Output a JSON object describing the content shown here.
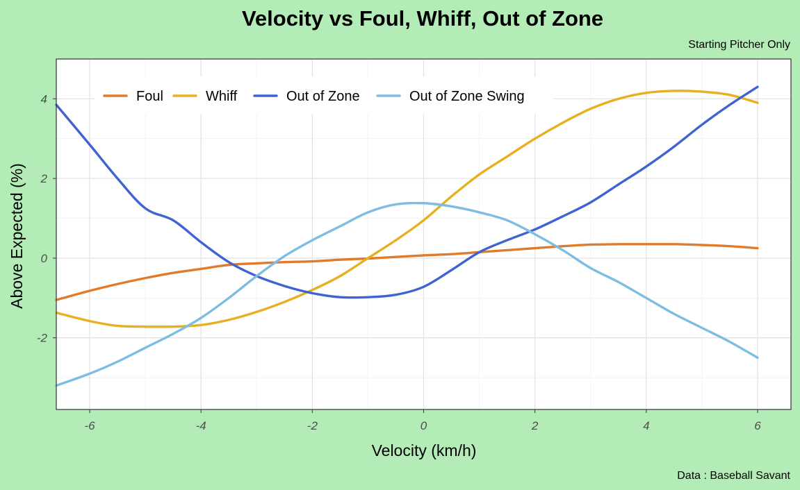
{
  "chart_data": {
    "type": "line",
    "title": "Velocity vs Foul, Whiff, Out of Zone",
    "subtitle": "Starting Pitcher Only",
    "caption": "Data : Baseball Savant",
    "xlabel": "Velocity (km/h)",
    "ylabel": "Above Expected (%)",
    "xlim": [
      -6.6,
      6.6
    ],
    "ylim": [
      -3.8,
      5.0
    ],
    "xticks": [
      -6,
      -4,
      -2,
      0,
      2,
      4,
      6
    ],
    "xtick_labels": [
      "-6",
      "-4",
      "-2",
      "0",
      "2",
      "4",
      "6"
    ],
    "yticks": [
      -2,
      0,
      2,
      4
    ],
    "ytick_labels": [
      "-2",
      "0",
      "2",
      "4"
    ],
    "grid": true,
    "legend_position": "top-left",
    "series": [
      {
        "name": "Foul",
        "color": "#e07b2c",
        "x": [
          -6.6,
          -6.0,
          -5.5,
          -5.0,
          -4.5,
          -4.0,
          -3.5,
          -3.0,
          -2.5,
          -2.0,
          -1.5,
          -1.0,
          -0.5,
          0.0,
          0.5,
          1.0,
          1.5,
          2.0,
          2.5,
          3.0,
          3.5,
          4.0,
          4.5,
          5.0,
          5.5,
          6.0
        ],
        "y": [
          -1.05,
          -0.82,
          -0.65,
          -0.5,
          -0.37,
          -0.27,
          -0.17,
          -0.13,
          -0.1,
          -0.08,
          -0.04,
          -0.01,
          0.03,
          0.07,
          0.1,
          0.15,
          0.2,
          0.25,
          0.3,
          0.34,
          0.35,
          0.35,
          0.35,
          0.33,
          0.3,
          0.25
        ]
      },
      {
        "name": "Whiff",
        "color": "#e8b020",
        "x": [
          -6.6,
          -6.0,
          -5.5,
          -5.0,
          -4.5,
          -4.0,
          -3.5,
          -3.0,
          -2.5,
          -2.0,
          -1.5,
          -1.0,
          -0.5,
          0.0,
          0.5,
          1.0,
          1.5,
          2.0,
          2.5,
          3.0,
          3.5,
          4.0,
          4.5,
          5.0,
          5.5,
          6.0
        ],
        "y": [
          -1.37,
          -1.58,
          -1.7,
          -1.72,
          -1.72,
          -1.68,
          -1.55,
          -1.35,
          -1.1,
          -0.8,
          -0.45,
          0.0,
          0.45,
          0.95,
          1.55,
          2.1,
          2.55,
          3.0,
          3.4,
          3.75,
          4.0,
          4.15,
          4.2,
          4.18,
          4.1,
          3.9
        ]
      },
      {
        "name": "Out of Zone",
        "color": "#3f63d3",
        "x": [
          -6.6,
          -6.0,
          -5.5,
          -5.0,
          -4.5,
          -4.0,
          -3.5,
          -3.0,
          -2.5,
          -2.0,
          -1.5,
          -1.0,
          -0.5,
          0.0,
          0.5,
          1.0,
          1.5,
          2.0,
          2.5,
          3.0,
          3.5,
          4.0,
          4.5,
          5.0,
          5.5,
          6.0
        ],
        "y": [
          3.85,
          2.85,
          2.0,
          1.25,
          0.95,
          0.4,
          -0.1,
          -0.45,
          -0.7,
          -0.88,
          -0.98,
          -0.98,
          -0.92,
          -0.72,
          -0.3,
          0.15,
          0.45,
          0.72,
          1.05,
          1.4,
          1.85,
          2.3,
          2.8,
          3.35,
          3.85,
          4.3
        ]
      },
      {
        "name": "Out of Zone Swing",
        "color": "#7ebde3",
        "x": [
          -6.6,
          -6.0,
          -5.5,
          -5.0,
          -4.5,
          -4.0,
          -3.5,
          -3.0,
          -2.5,
          -2.0,
          -1.5,
          -1.0,
          -0.5,
          0.0,
          0.5,
          1.0,
          1.5,
          2.0,
          2.5,
          3.0,
          3.5,
          4.0,
          4.5,
          5.0,
          5.5,
          6.0
        ],
        "y": [
          -3.2,
          -2.9,
          -2.6,
          -2.25,
          -1.9,
          -1.5,
          -1.0,
          -0.45,
          0.05,
          0.45,
          0.8,
          1.15,
          1.35,
          1.38,
          1.3,
          1.15,
          0.95,
          0.6,
          0.2,
          -0.25,
          -0.6,
          -1.0,
          -1.4,
          -1.75,
          -2.1,
          -2.5
        ]
      }
    ]
  }
}
